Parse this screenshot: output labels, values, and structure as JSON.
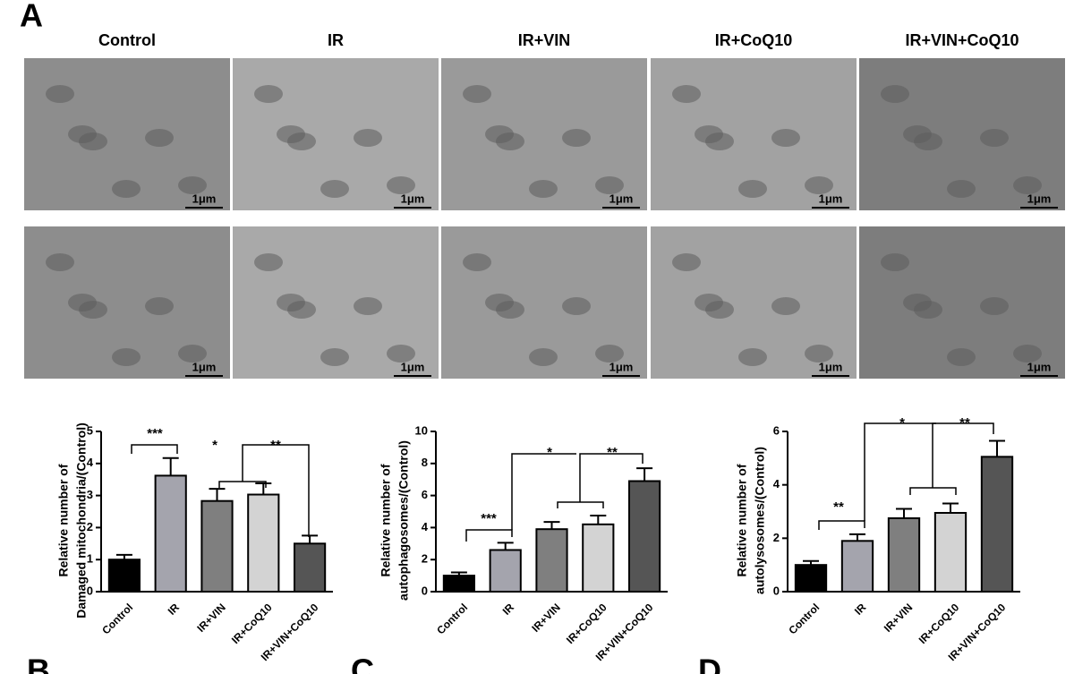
{
  "figure_label_a": "A",
  "column_titles": [
    "Control",
    "IR",
    "IR+VIN",
    "IR+CoQ10",
    "IR+VIN+CoQ10"
  ],
  "scale_bar_labels": [
    "1μm",
    "1μm",
    "1μm",
    "1μm",
    "1μm",
    "1μm",
    "1μm",
    "1μm",
    "1μm",
    "1μm"
  ],
  "chart_data": [
    {
      "type": "bar",
      "panel_label": "B",
      "y_label": [
        "Relative number of",
        "Damaged mitochondria/(Control)"
      ],
      "categories": [
        "Control",
        "IR",
        "IR+VIN",
        "IR+CoQ10",
        "IR+VIN+CoQ10"
      ],
      "values": [
        1.0,
        3.62,
        2.83,
        3.03,
        1.5
      ],
      "errors": [
        0.15,
        0.55,
        0.38,
        0.35,
        0.25
      ],
      "colors": [
        "#000000",
        "#a4a4ad",
        "#7f7f7f",
        "#d3d3d3",
        "#555555"
      ],
      "ylim": [
        0,
        5
      ],
      "yticks": [
        0,
        1,
        2,
        3,
        4,
        5
      ],
      "significance_labels": [
        "***",
        "*",
        "**"
      ]
    },
    {
      "type": "bar",
      "panel_label": "C",
      "y_label": [
        "Relative number of",
        "autophagosomes/(Control)"
      ],
      "categories": [
        "Control",
        "IR",
        "IR+VIN",
        "IR+CoQ10",
        "IR+VIN+CoQ10"
      ],
      "values": [
        1.0,
        2.6,
        3.9,
        4.2,
        6.9
      ],
      "errors": [
        0.2,
        0.45,
        0.45,
        0.55,
        0.8
      ],
      "colors": [
        "#000000",
        "#a4a4ad",
        "#7f7f7f",
        "#d3d3d3",
        "#555555"
      ],
      "ylim": [
        0,
        10
      ],
      "yticks": [
        0,
        2,
        4,
        6,
        8,
        10
      ],
      "significance_labels": [
        "***",
        "*",
        "**"
      ]
    },
    {
      "type": "bar",
      "panel_label": "D",
      "y_label": [
        "Relative number of",
        "autolysosomes/(Control)"
      ],
      "categories": [
        "Control",
        "IR",
        "IR+VIN",
        "IR+CoQ10",
        "IR+VIN+CoQ10"
      ],
      "values": [
        1.0,
        1.9,
        2.75,
        2.95,
        5.05
      ],
      "errors": [
        0.15,
        0.25,
        0.35,
        0.35,
        0.6
      ],
      "colors": [
        "#000000",
        "#a4a4ad",
        "#7f7f7f",
        "#d3d3d3",
        "#555555"
      ],
      "ylim": [
        0,
        6
      ],
      "yticks": [
        0,
        2,
        4,
        6
      ],
      "significance_labels": [
        "**",
        "*",
        "**"
      ]
    }
  ]
}
